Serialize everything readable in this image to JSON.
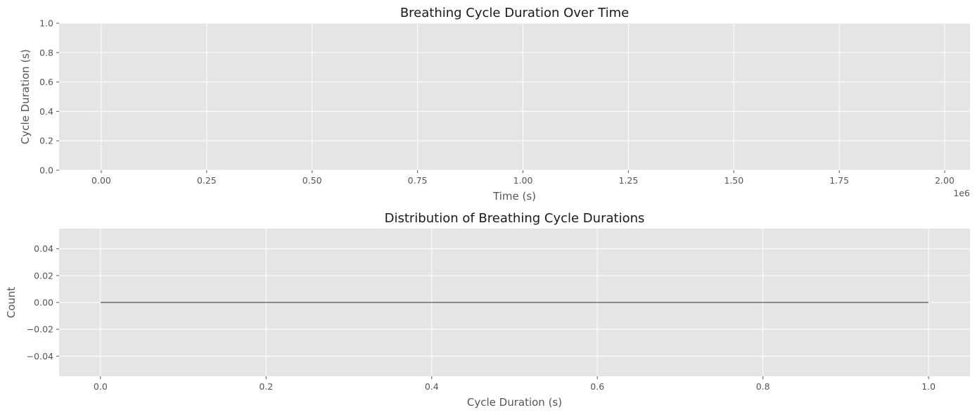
{
  "chart_data": [
    {
      "type": "line",
      "title": "Breathing Cycle Duration Over Time",
      "xlabel": "Time (s)",
      "ylabel": "Cycle Duration (s)",
      "x_offset_label": "1e6",
      "xlim": [
        -0.1,
        2.06
      ],
      "ylim": [
        0,
        1
      ],
      "xticks": [
        0,
        0.25,
        0.5,
        0.75,
        1.0,
        1.25,
        1.5,
        1.75,
        2.0
      ],
      "xtick_labels": [
        "0.00",
        "0.25",
        "0.50",
        "0.75",
        "1.00",
        "1.25",
        "1.50",
        "1.75",
        "2.00"
      ],
      "yticks": [
        0,
        0.2,
        0.4,
        0.6,
        0.8,
        1.0
      ],
      "ytick_labels": [
        "0.0",
        "0.2",
        "0.4",
        "0.6",
        "0.8",
        "1.0"
      ],
      "grid": true,
      "series": []
    },
    {
      "type": "histogram",
      "title": "Distribution of Breathing Cycle Durations",
      "xlabel": "Cycle Duration (s)",
      "ylabel": "Count",
      "xlim": [
        -0.05,
        1.05
      ],
      "ylim": [
        -0.055,
        0.055
      ],
      "xticks": [
        0,
        0.2,
        0.4,
        0.6,
        0.8,
        1.0
      ],
      "xtick_labels": [
        "0.0",
        "0.2",
        "0.4",
        "0.6",
        "0.8",
        "1.0"
      ],
      "yticks": [
        -0.04,
        -0.02,
        0,
        0.02,
        0.04
      ],
      "ytick_labels": [
        "−0.04",
        "−0.02",
        "0.00",
        "0.02",
        "0.04"
      ],
      "grid": true,
      "bins": {
        "range": [
          0,
          1
        ],
        "counts": [
          0
        ]
      }
    }
  ],
  "colors": {
    "plot_background": "#e5e5e5",
    "grid": "#ffffff",
    "text": "#555555",
    "title": "#1a1a1a",
    "bar_edge": "#333333"
  }
}
